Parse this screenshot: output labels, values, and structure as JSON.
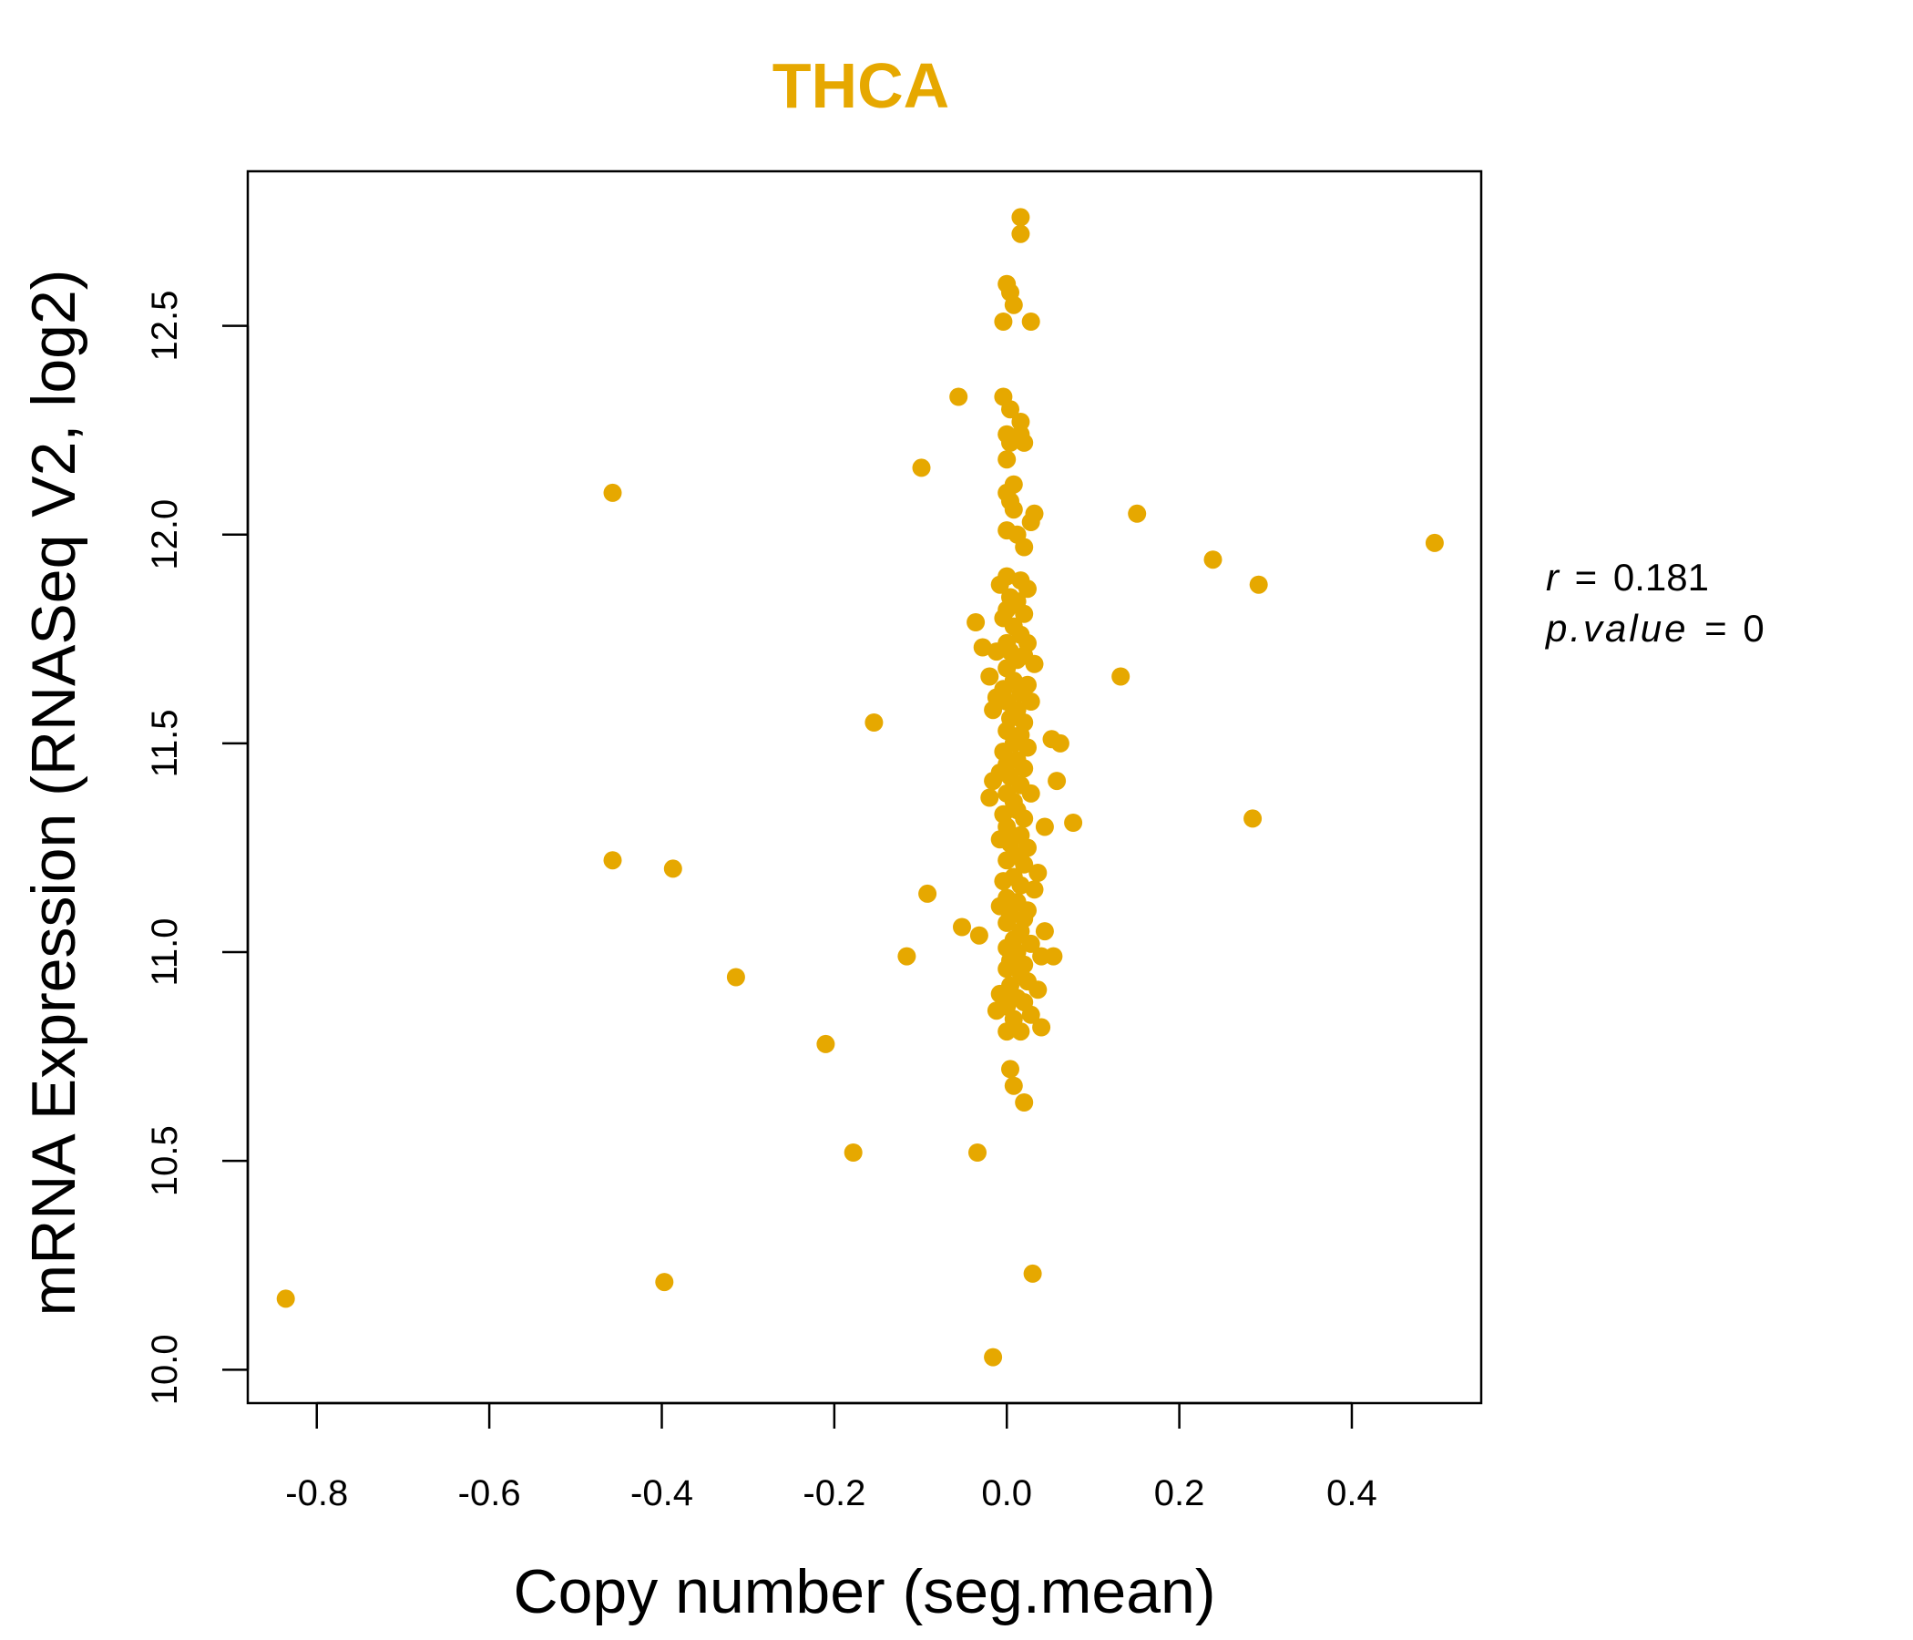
{
  "chart_data": {
    "type": "scatter",
    "title": "THCA",
    "xlabel": "Copy number (seg.mean)",
    "ylabel": "mRNA Expression (RNASeq V2, log2)",
    "xlim": [
      -0.88,
      0.55
    ],
    "ylim": [
      9.92,
      12.87
    ],
    "x_ticks": [
      "-0.8",
      "-0.6",
      "-0.4",
      "-0.2",
      "0.0",
      "0.2",
      "0.4"
    ],
    "y_ticks": [
      "10.0",
      "10.5",
      "11.0",
      "11.5",
      "12.0",
      "12.5"
    ],
    "point_color": "#E6A800",
    "stats": {
      "r_label": "r",
      "r_value": "0.181",
      "p_label": "p.value",
      "p_value": "0"
    },
    "points": [
      [
        0.016,
        12.76
      ],
      [
        0.016,
        12.72
      ],
      [
        0.0,
        12.6
      ],
      [
        0.004,
        12.58
      ],
      [
        0.008,
        12.55
      ],
      [
        -0.004,
        12.51
      ],
      [
        0.028,
        12.51
      ],
      [
        -0.056,
        12.33
      ],
      [
        -0.004,
        12.33
      ],
      [
        0.004,
        12.3
      ],
      [
        0.016,
        12.27
      ],
      [
        0.0,
        12.24
      ],
      [
        0.016,
        12.24
      ],
      [
        0.004,
        12.22
      ],
      [
        0.02,
        12.22
      ],
      [
        0.0,
        12.18
      ],
      [
        -0.099,
        12.16
      ],
      [
        0.008,
        12.12
      ],
      [
        -0.457,
        12.1
      ],
      [
        0.0,
        12.1
      ],
      [
        0.004,
        12.08
      ],
      [
        0.008,
        12.06
      ],
      [
        0.032,
        12.05
      ],
      [
        0.151,
        12.05
      ],
      [
        0.028,
        12.03
      ],
      [
        0.0,
        12.01
      ],
      [
        0.012,
        12.0
      ],
      [
        0.02,
        11.97
      ],
      [
        0.496,
        11.98
      ],
      [
        0.239,
        11.94
      ],
      [
        0.0,
        11.9
      ],
      [
        0.016,
        11.89
      ],
      [
        0.292,
        11.88
      ],
      [
        -0.008,
        11.88
      ],
      [
        0.024,
        11.87
      ],
      [
        0.004,
        11.85
      ],
      [
        0.012,
        11.84
      ],
      [
        0.0,
        11.82
      ],
      [
        0.02,
        11.81
      ],
      [
        -0.004,
        11.8
      ],
      [
        -0.036,
        11.79
      ],
      [
        0.008,
        11.78
      ],
      [
        0.016,
        11.76
      ],
      [
        0.0,
        11.74
      ],
      [
        0.024,
        11.74
      ],
      [
        -0.028,
        11.73
      ],
      [
        -0.012,
        11.72
      ],
      [
        0.004,
        11.72
      ],
      [
        0.02,
        11.71
      ],
      [
        0.012,
        11.7
      ],
      [
        0.0,
        11.68
      ],
      [
        0.032,
        11.69
      ],
      [
        -0.02,
        11.66
      ],
      [
        0.132,
        11.66
      ],
      [
        0.008,
        11.65
      ],
      [
        0.024,
        11.64
      ],
      [
        -0.004,
        11.63
      ],
      [
        0.016,
        11.62
      ],
      [
        -0.012,
        11.61
      ],
      [
        0.0,
        11.6
      ],
      [
        0.028,
        11.6
      ],
      [
        0.012,
        11.58
      ],
      [
        -0.016,
        11.58
      ],
      [
        0.004,
        11.56
      ],
      [
        0.02,
        11.55
      ],
      [
        -0.154,
        11.55
      ],
      [
        0.0,
        11.53
      ],
      [
        0.016,
        11.52
      ],
      [
        0.052,
        11.51
      ],
      [
        0.062,
        11.5
      ],
      [
        0.008,
        11.5
      ],
      [
        0.024,
        11.49
      ],
      [
        -0.004,
        11.48
      ],
      [
        0.012,
        11.46
      ],
      [
        0.0,
        11.45
      ],
      [
        0.02,
        11.44
      ],
      [
        -0.008,
        11.43
      ],
      [
        -0.016,
        11.41
      ],
      [
        0.004,
        11.42
      ],
      [
        0.058,
        11.41
      ],
      [
        0.016,
        11.4
      ],
      [
        0.0,
        11.38
      ],
      [
        0.028,
        11.38
      ],
      [
        -0.02,
        11.37
      ],
      [
        0.008,
        11.36
      ],
      [
        0.012,
        11.34
      ],
      [
        -0.004,
        11.33
      ],
      [
        0.02,
        11.32
      ],
      [
        0.077,
        11.31
      ],
      [
        0.285,
        11.32
      ],
      [
        0.044,
        11.3
      ],
      [
        0.0,
        11.3
      ],
      [
        0.016,
        11.28
      ],
      [
        -0.008,
        11.27
      ],
      [
        0.004,
        11.26
      ],
      [
        0.024,
        11.25
      ],
      [
        0.012,
        11.23
      ],
      [
        -0.457,
        11.22
      ],
      [
        0.0,
        11.22
      ],
      [
        0.02,
        11.21
      ],
      [
        -0.387,
        11.2
      ],
      [
        0.036,
        11.19
      ],
      [
        0.008,
        11.18
      ],
      [
        -0.004,
        11.17
      ],
      [
        0.016,
        11.16
      ],
      [
        0.032,
        11.15
      ],
      [
        -0.092,
        11.14
      ],
      [
        0.0,
        11.13
      ],
      [
        0.012,
        11.12
      ],
      [
        -0.008,
        11.11
      ],
      [
        0.024,
        11.1
      ],
      [
        0.004,
        11.09
      ],
      [
        0.02,
        11.08
      ],
      [
        0.0,
        11.07
      ],
      [
        -0.052,
        11.06
      ],
      [
        0.044,
        11.05
      ],
      [
        0.016,
        11.05
      ],
      [
        -0.032,
        11.04
      ],
      [
        0.008,
        11.03
      ],
      [
        0.028,
        11.02
      ],
      [
        0.0,
        11.01
      ],
      [
        0.012,
        11.0
      ],
      [
        0.04,
        10.99
      ],
      [
        0.054,
        10.99
      ],
      [
        -0.116,
        10.99
      ],
      [
        0.004,
        10.98
      ],
      [
        0.02,
        10.97
      ],
      [
        0.0,
        10.96
      ],
      [
        0.016,
        10.95
      ],
      [
        -0.314,
        10.94
      ],
      [
        0.024,
        10.93
      ],
      [
        0.004,
        10.92
      ],
      [
        0.036,
        10.91
      ],
      [
        -0.008,
        10.9
      ],
      [
        0.012,
        10.89
      ],
      [
        0.02,
        10.88
      ],
      [
        0.0,
        10.87
      ],
      [
        -0.012,
        10.86
      ],
      [
        0.028,
        10.85
      ],
      [
        0.008,
        10.84
      ],
      [
        0.04,
        10.82
      ],
      [
        0.0,
        10.81
      ],
      [
        0.016,
        10.81
      ],
      [
        -0.21,
        10.78
      ],
      [
        0.004,
        10.72
      ],
      [
        0.008,
        10.68
      ],
      [
        0.02,
        10.64
      ],
      [
        -0.178,
        10.52
      ],
      [
        -0.034,
        10.52
      ],
      [
        0.03,
        10.23
      ],
      [
        -0.397,
        10.21
      ],
      [
        -0.836,
        10.17
      ],
      [
        -0.016,
        10.03
      ]
    ]
  }
}
